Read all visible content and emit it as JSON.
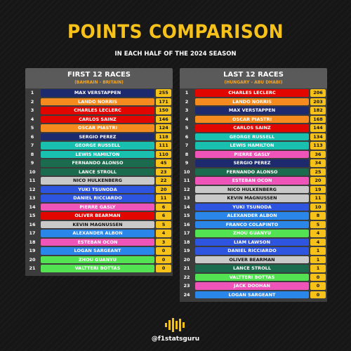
{
  "header": {
    "title": "POINTS COMPARISON",
    "subtitle": "IN EACH HALF OF THE 2024 SEASON"
  },
  "footer": {
    "handle": "@f1statsguru"
  },
  "colors": {
    "Red Bull": "#1e2a6e",
    "McLaren": "#f58a1f",
    "Ferrari": "#e10600",
    "Mercedes": "#19c0b0",
    "Aston Martin": "#1b6b4e",
    "Haas": "#c9c9c9",
    "Racing Bulls": "#2d55e0",
    "Alpine": "#ef55b8",
    "Williams": "#2a86e8",
    "Sauber": "#52e252",
    "points": "#f6c21a"
  },
  "chart_data": [
    {
      "type": "table",
      "title": "FIRST 12 RACES",
      "subtitle": "(BAHRAIN - BRITAIN)",
      "rows": [
        {
          "pos": "1",
          "driver": "MAX VERSTAPPEN",
          "team": "Red Bull",
          "points": 255
        },
        {
          "pos": "2",
          "driver": "LANDO NORRIS",
          "team": "McLaren",
          "points": 171
        },
        {
          "pos": "3",
          "driver": "CHARLES LECLERC",
          "team": "Ferrari",
          "points": 150
        },
        {
          "pos": "4",
          "driver": "CARLOS SAINZ",
          "team": "Ferrari",
          "points": 146
        },
        {
          "pos": "5",
          "driver": "OSCAR PIASTRI",
          "team": "McLaren",
          "points": 124
        },
        {
          "pos": "6",
          "driver": "SERGIO PEREZ",
          "team": "Red Bull",
          "points": 118
        },
        {
          "pos": "7",
          "driver": "GEORGE RUSSELL",
          "team": "Mercedes",
          "points": 111
        },
        {
          "pos": "8",
          "driver": "LEWIS HAMILTON",
          "team": "Mercedes",
          "points": 110
        },
        {
          "pos": "9",
          "driver": "FERNANDO ALONSO",
          "team": "Aston Martin",
          "points": 45
        },
        {
          "pos": "10",
          "driver": "LANCE STROLL",
          "team": "Aston Martin",
          "points": 23
        },
        {
          "pos": "11",
          "driver": "NICO HULKENBERG",
          "team": "Haas",
          "points": 22
        },
        {
          "pos": "12",
          "driver": "YUKI TSUNODA",
          "team": "Racing Bulls",
          "points": 20
        },
        {
          "pos": "13",
          "driver": "DANIEL RICCIARDO",
          "team": "Racing Bulls",
          "points": 11
        },
        {
          "pos": "14",
          "driver": "PIERRE GASLY",
          "team": "Alpine",
          "points": 6
        },
        {
          "pos": "15",
          "driver": "OLIVER BEARMAN",
          "team": "Ferrari",
          "points": 6
        },
        {
          "pos": "16",
          "driver": "KEVIN MAGNUSSEN",
          "team": "Haas",
          "points": 5
        },
        {
          "pos": "17",
          "driver": "ALEXANDER ALBON",
          "team": "Williams",
          "points": 4
        },
        {
          "pos": "18",
          "driver": "ESTEBAN OCON",
          "team": "Alpine",
          "points": 3
        },
        {
          "pos": "19",
          "driver": "LOGAN SARGEANT",
          "team": "Williams",
          "points": 0
        },
        {
          "pos": "20",
          "driver": "ZHOU GUANYU",
          "team": "Sauber",
          "points": 0
        },
        {
          "pos": "21",
          "driver": "VALTTERI BOTTAS",
          "team": "Sauber",
          "points": 0
        }
      ]
    },
    {
      "type": "table",
      "title": "LAST 12 RACES",
      "subtitle": "(HUNGARY - ABU DHABI)",
      "rows": [
        {
          "pos": "1",
          "driver": "CHARLES LECLERC",
          "team": "Ferrari",
          "points": 206
        },
        {
          "pos": "2",
          "driver": "LANDO NORRIS",
          "team": "McLaren",
          "points": 203
        },
        {
          "pos": "3",
          "driver": "MAX VERSTAPPEN",
          "team": "Red Bull",
          "points": 182
        },
        {
          "pos": "4",
          "driver": "OSCAR PIASTRI",
          "team": "McLaren",
          "points": 168
        },
        {
          "pos": "5",
          "driver": "CARLOS SAINZ",
          "team": "Ferrari",
          "points": 144
        },
        {
          "pos": "6",
          "driver": "GEORGE RUSSELL",
          "team": "Mercedes",
          "points": 134
        },
        {
          "pos": "7",
          "driver": "LEWIS HAMILTON",
          "team": "Mercedes",
          "points": 113
        },
        {
          "pos": "8",
          "driver": "PIERRE GASLY",
          "team": "Alpine",
          "points": 36
        },
        {
          "pos": "9",
          "driver": "SERGIO PEREZ",
          "team": "Red Bull",
          "points": 34
        },
        {
          "pos": "10",
          "driver": "FERNANDO ALONSO",
          "team": "Aston Martin",
          "points": 25
        },
        {
          "pos": "11",
          "driver": "ESTEBAN OCON",
          "team": "Alpine",
          "points": 20
        },
        {
          "pos": "12",
          "driver": "NICO HULKENBERG",
          "team": "Haas",
          "points": 19
        },
        {
          "pos": "13",
          "driver": "KEVIN MAGNUSSEN",
          "team": "Haas",
          "points": 11
        },
        {
          "pos": "14",
          "driver": "YUKI TSUNODA",
          "team": "Racing Bulls",
          "points": 10
        },
        {
          "pos": "15",
          "driver": "ALEXANDER ALBON",
          "team": "Williams",
          "points": 8
        },
        {
          "pos": "16",
          "driver": "FRANCO COLAPINTO",
          "team": "Williams",
          "points": 5
        },
        {
          "pos": "17",
          "driver": "ZHOU GUANYU",
          "team": "Sauber",
          "points": 4
        },
        {
          "pos": "18",
          "driver": "LIAM LAWSON",
          "team": "Racing Bulls",
          "points": 4
        },
        {
          "pos": "19",
          "driver": "DANIEL RICCIARDO",
          "team": "Racing Bulls",
          "points": 1
        },
        {
          "pos": "20",
          "driver": "OLIVER BEARMAN",
          "team": "Haas",
          "points": 1
        },
        {
          "pos": "21",
          "driver": "LANCE STROLL",
          "team": "Aston Martin",
          "points": 1
        },
        {
          "pos": "22",
          "driver": "VALTTERI BOTTAS",
          "team": "Sauber",
          "points": 0
        },
        {
          "pos": "23",
          "driver": "JACK DOOHAN",
          "team": "Alpine",
          "points": 0
        },
        {
          "pos": "24",
          "driver": "LOGAN SARGEANT",
          "team": "Williams",
          "points": 0
        }
      ]
    }
  ]
}
